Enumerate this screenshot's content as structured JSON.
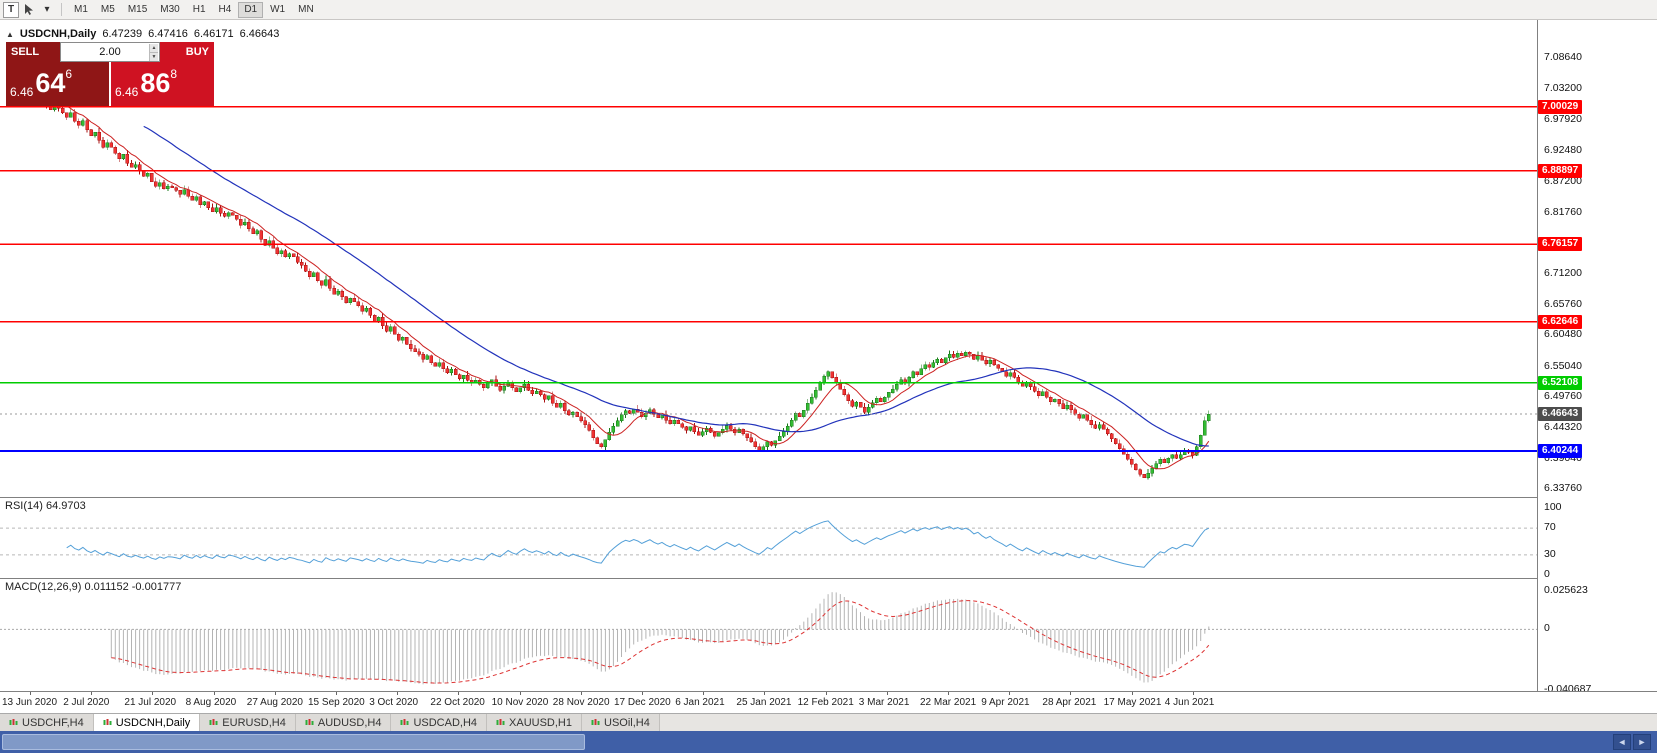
{
  "toolbar": {
    "tool_button": "T",
    "dropdown_caret": "▾",
    "timeframes": [
      "M1",
      "M5",
      "M15",
      "M30",
      "H1",
      "H4",
      "D1",
      "W1",
      "MN"
    ],
    "active_timeframe": "D1"
  },
  "chart_header": {
    "oct_toggle_icon": "▲",
    "symbol": "USDCNH,Daily",
    "open": "6.47239",
    "high": "6.47416",
    "low": "6.46171",
    "close": "6.46643"
  },
  "trade_widget": {
    "sell_label": "SELL",
    "buy_label": "BUY",
    "volume": "2.00",
    "spin_up_icon": "▲",
    "spin_down_icon": "▼",
    "sell_price_prefix": "6.46",
    "sell_price_big": "64",
    "sell_price_sup": "6",
    "buy_price_prefix": "6.46",
    "buy_price_big": "86",
    "buy_price_sup": "8"
  },
  "price_axis": {
    "labels": [
      "7.08640",
      "7.03200",
      "6.97920",
      "6.92480",
      "6.87200",
      "6.81760",
      "6.76480",
      "6.71200",
      "6.65760",
      "6.60480",
      "6.55040",
      "6.49760",
      "6.44320",
      "6.39040",
      "6.33760"
    ]
  },
  "hlines": [
    {
      "label": "7.00029",
      "price": 7.00029,
      "color": "#ff0000",
      "thick": false
    },
    {
      "label": "6.88897",
      "price": 6.88897,
      "color": "#ff0000",
      "thick": false
    },
    {
      "label": "6.76157",
      "price": 6.76157,
      "color": "#ff0000",
      "thick": false
    },
    {
      "label": "6.62646",
      "price": 6.62646,
      "color": "#ff0000",
      "thick": false
    },
    {
      "label": "6.52108",
      "price": 6.52108,
      "color": "#00cc00",
      "thick": false
    },
    {
      "label": "6.40244",
      "price": 6.40244,
      "color": "#0000ff",
      "thick": true
    }
  ],
  "current_price": {
    "label": "6.46643",
    "price": 6.46643,
    "tag_color": "#4d4d4d"
  },
  "rsi": {
    "title": "RSI(14) 64.9703",
    "levels": [
      "100",
      "70",
      "30",
      "0"
    ],
    "guide_levels": [
      70,
      30
    ]
  },
  "macd": {
    "title": "MACD(12,26,9) 0.011152 -0.001777",
    "levels": [
      "0.025623",
      "0",
      "-0.040687"
    ]
  },
  "time_axis": {
    "labels": [
      "13 Jun 2020",
      "2 Jul 2020",
      "21 Jul 2020",
      "8 Aug 2020",
      "27 Aug 2020",
      "15 Sep 2020",
      "3 Oct 2020",
      "22 Oct 2020",
      "10 Nov 2020",
      "28 Nov 2020",
      "17 Dec 2020",
      "6 Jan 2021",
      "25 Jan 2021",
      "12 Feb 2021",
      "3 Mar 2021",
      "22 Mar 2021",
      "9 Apr 2021",
      "28 Apr 2021",
      "17 May 2021",
      "4 Jun 2021"
    ]
  },
  "tabs": {
    "items": [
      {
        "label": "USDCHF,H4",
        "active": false
      },
      {
        "label": "USDCNH,Daily",
        "active": true
      },
      {
        "label": "EURUSD,H4",
        "active": false
      },
      {
        "label": "AUDUSD,H4",
        "active": false
      },
      {
        "label": "USDCAD,H4",
        "active": false
      },
      {
        "label": "XAUUSD,H1",
        "active": false
      },
      {
        "label": "USOil,H4",
        "active": false
      }
    ]
  },
  "scrollbar": {
    "left_arrow": "◄",
    "right_arrow": "►"
  },
  "colors": {
    "up_fill": "#33bb33",
    "up_stroke": "#1b7a1b",
    "down_fill": "#ee3333",
    "down_stroke": "#aa1111",
    "ma_fast": "#cc2222",
    "ma_slow": "#2233bb",
    "rsi": "#54a0d8",
    "macd_hist": "#b4b4b4",
    "macd_signal": "#dd3333",
    "line_red": "#ff0000",
    "line_green": "#00cc00",
    "line_blue": "#0000ff",
    "tag_current": "#4d4d4d"
  },
  "chart_data": {
    "type": "candlestick",
    "symbol": "USDCNH",
    "timeframe": "Daily",
    "title": "USDCNH,Daily",
    "ylim": [
      6.3376,
      7.0864
    ],
    "y_tick_labels": [
      "7.08640",
      "7.03200",
      "6.97920",
      "6.92480",
      "6.87200",
      "6.81760",
      "6.76480",
      "6.71200",
      "6.65760",
      "6.60480",
      "6.55040",
      "6.49760",
      "6.44320",
      "6.39040",
      "6.33760"
    ],
    "x_tick_labels": [
      "13 Jun 2020",
      "2 Jul 2020",
      "21 Jul 2020",
      "8 Aug 2020",
      "27 Aug 2020",
      "15 Sep 2020",
      "3 Oct 2020",
      "22 Oct 2020",
      "10 Nov 2020",
      "28 Nov 2020",
      "17 Dec 2020",
      "6 Jan 2021",
      "25 Jan 2021",
      "12 Feb 2021",
      "3 Mar 2021",
      "22 Mar 2021",
      "9 Apr 2021",
      "28 Apr 2021",
      "17 May 2021",
      "4 Jun 2021"
    ],
    "ohlc_current": {
      "open": 6.47239,
      "high": 6.47416,
      "low": 6.46171,
      "close": 6.46643
    },
    "horizontal_levels": [
      7.00029,
      6.88897,
      6.76157,
      6.62646,
      6.52108,
      6.40244
    ],
    "indicators": {
      "rsi_period": 14,
      "rsi_current": 64.9703,
      "rsi_axis": [
        100,
        70,
        30,
        0
      ],
      "macd_params": "12,26,9",
      "macd_current": [
        0.011152,
        -0.001777
      ],
      "macd_axis": [
        0.025623,
        0,
        -0.040687
      ],
      "ma_fast_period": 8,
      "ma_slow_period": 34
    },
    "closes": [
      7.005,
      7.012,
      7.018,
      7.025,
      7.015,
      7.008,
      7.022,
      7.028,
      7.015,
      7.002,
      6.995,
      7.005,
      6.998,
      6.99,
      6.982,
      6.99,
      6.975,
      6.968,
      6.976,
      6.96,
      6.95,
      6.956,
      6.942,
      6.93,
      6.938,
      6.93,
      6.92,
      6.91,
      6.918,
      6.902,
      6.895,
      6.9,
      6.888,
      6.88,
      6.885,
      6.87,
      6.862,
      6.868,
      6.858,
      6.862,
      6.86,
      6.855,
      6.848,
      6.856,
      6.845,
      6.838,
      6.844,
      6.83,
      6.835,
      6.825,
      6.818,
      6.825,
      6.815,
      6.81,
      6.816,
      6.812,
      6.805,
      6.795,
      6.8,
      6.788,
      6.78,
      6.785,
      6.77,
      6.76,
      6.768,
      6.755,
      6.745,
      6.75,
      6.74,
      6.745,
      6.74,
      6.73,
      6.725,
      6.715,
      6.705,
      6.712,
      6.698,
      6.69,
      6.7,
      6.685,
      6.675,
      6.68,
      6.67,
      6.66,
      6.668,
      6.662,
      6.655,
      6.645,
      6.65,
      6.638,
      6.628,
      6.635,
      6.62,
      6.61,
      6.618,
      6.605,
      6.595,
      6.6,
      6.588,
      6.58,
      6.575,
      6.57,
      6.562,
      6.568,
      6.556,
      6.55,
      6.556,
      6.545,
      6.538,
      6.544,
      6.535,
      6.528,
      6.534,
      6.525,
      6.52,
      6.525,
      6.518,
      6.512,
      6.52,
      6.526,
      6.515,
      6.508,
      6.515,
      6.522,
      6.512,
      6.505,
      6.512,
      6.518,
      6.508,
      6.502,
      6.506,
      6.5,
      6.492,
      6.498,
      6.485,
      6.478,
      6.485,
      6.472,
      6.465,
      6.47,
      6.462,
      6.455,
      6.448,
      6.438,
      6.425,
      6.415,
      6.41,
      6.422,
      6.435,
      6.445,
      6.455,
      6.465,
      6.472,
      6.468,
      6.475,
      6.47,
      6.462,
      6.468,
      6.474,
      6.466,
      6.46,
      6.465,
      6.456,
      6.45,
      6.456,
      6.45,
      6.444,
      6.438,
      6.444,
      6.436,
      6.43,
      6.436,
      6.442,
      6.435,
      6.428,
      6.434,
      6.44,
      6.446,
      6.44,
      6.434,
      6.44,
      6.432,
      6.425,
      6.418,
      6.41,
      6.404,
      6.41,
      6.418,
      6.412,
      6.42,
      6.428,
      6.436,
      6.445,
      6.456,
      6.468,
      6.462,
      6.473,
      6.485,
      6.496,
      6.508,
      6.52,
      6.532,
      6.54,
      6.53,
      6.52,
      6.51,
      6.5,
      6.49,
      6.48,
      6.487,
      6.478,
      6.47,
      6.478,
      6.486,
      6.494,
      6.488,
      6.496,
      6.504,
      6.51,
      6.518,
      6.526,
      6.52,
      6.53,
      6.54,
      6.535,
      6.545,
      6.552,
      6.548,
      6.556,
      6.562,
      6.556,
      6.564,
      6.57,
      6.565,
      6.572,
      6.568,
      6.574,
      6.57,
      6.562,
      6.568,
      6.56,
      6.554,
      6.56,
      6.552,
      6.546,
      6.54,
      6.532,
      6.538,
      6.53,
      6.522,
      6.515,
      6.522,
      6.514,
      6.506,
      6.498,
      6.505,
      6.496,
      6.488,
      6.492,
      6.484,
      6.476,
      6.482,
      6.474,
      6.466,
      6.459,
      6.465,
      6.456,
      6.448,
      6.442,
      6.448,
      6.44,
      6.432,
      6.424,
      6.415,
      6.406,
      6.397,
      6.388,
      6.379,
      6.37,
      6.362,
      6.356,
      6.364,
      6.372,
      6.38,
      6.388,
      6.382,
      6.39,
      6.396,
      6.39,
      6.396,
      6.402,
      6.4,
      6.395,
      6.41,
      6.43,
      6.455,
      6.4664
    ]
  }
}
